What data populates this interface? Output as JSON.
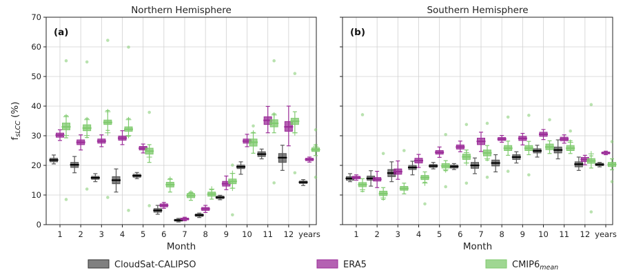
{
  "chart_data": [
    {
      "type": "box",
      "title": "Northern Hemisphere",
      "panel_label": "(a)",
      "xlabel": "Month",
      "ylabel": "f",
      "ylabel_sub": "sLCC",
      "ylabel_suffix": " (%)",
      "ylim": [
        0,
        70
      ],
      "yticks": [
        "0",
        "10",
        "20",
        "30",
        "40",
        "50",
        "60",
        "70"
      ],
      "categories": [
        "1",
        "2",
        "3",
        "4",
        "5",
        "6",
        "7",
        "8",
        "9",
        "10",
        "11",
        "12",
        "years"
      ],
      "grid": true,
      "series": [
        {
          "name": "CloudSat-CALIPSO",
          "color": "#555555",
          "median": [
            21.8,
            20.2,
            15.8,
            15.0,
            16.5,
            4.8,
            1.5,
            3.2,
            9.2,
            19.5,
            23.8,
            22.6,
            14.3
          ],
          "q1": [
            21.2,
            19.3,
            15.3,
            13.8,
            16.0,
            4.2,
            1.2,
            2.8,
            8.8,
            18.9,
            23.0,
            21.0,
            13.9
          ],
          "q3": [
            22.4,
            21.0,
            16.3,
            16.2,
            17.0,
            5.4,
            1.8,
            3.6,
            9.6,
            20.1,
            24.6,
            24.0,
            14.7
          ],
          "wlo": [
            20.5,
            17.5,
            14.5,
            11.0,
            15.5,
            3.5,
            0.9,
            2.4,
            8.4,
            17.0,
            22.2,
            18.3,
            13.2
          ],
          "whi": [
            23.5,
            23.0,
            17.2,
            18.8,
            17.6,
            6.5,
            2.1,
            3.9,
            9.9,
            21.2,
            25.5,
            26.8,
            15.2
          ]
        },
        {
          "name": "ERA5",
          "color": "#9b2c98",
          "median": [
            30.2,
            27.8,
            28.2,
            29.2,
            25.8,
            6.5,
            1.9,
            5.3,
            13.8,
            28.2,
            35.2,
            33.0,
            22.0
          ],
          "q1": [
            29.5,
            27.0,
            27.5,
            28.5,
            25.2,
            6.0,
            1.6,
            4.8,
            13.0,
            27.5,
            33.8,
            31.5,
            21.6
          ],
          "q3": [
            30.9,
            28.6,
            28.9,
            29.9,
            26.4,
            7.0,
            2.2,
            5.8,
            14.6,
            28.9,
            36.4,
            34.8,
            22.4
          ],
          "wlo": [
            28.4,
            25.2,
            26.3,
            27.0,
            24.2,
            5.5,
            1.3,
            4.1,
            11.8,
            26.3,
            31.0,
            26.6,
            21.1
          ],
          "whi": [
            32.0,
            30.3,
            30.3,
            31.7,
            27.2,
            7.5,
            2.5,
            6.5,
            16.4,
            30.5,
            39.9,
            40.0,
            22.8
          ]
        },
        {
          "name": "CMIP6_mean",
          "color": "#7fca6e",
          "median": [
            33.0,
            32.6,
            34.5,
            32.2,
            24.8,
            13.5,
            9.8,
            10.3,
            14.6,
            27.8,
            34.2,
            34.9,
            25.3
          ],
          "q1": [
            32.0,
            31.7,
            33.8,
            31.5,
            23.8,
            12.7,
            9.1,
            9.6,
            13.8,
            26.5,
            33.0,
            33.8,
            24.7
          ],
          "q3": [
            34.3,
            33.7,
            35.3,
            33.0,
            25.8,
            14.3,
            10.5,
            11.0,
            15.4,
            28.9,
            35.4,
            35.9,
            25.9
          ],
          "wlo": [
            29.3,
            29.4,
            31.8,
            29.8,
            21.0,
            11.0,
            8.2,
            8.6,
            12.3,
            24.1,
            31.0,
            31.0,
            23.3
          ],
          "whi": [
            36.8,
            35.8,
            38.5,
            35.8,
            27.0,
            15.5,
            11.0,
            11.8,
            17.3,
            31.1,
            37.4,
            38.1,
            26.9
          ],
          "plus": [
            [
              36.4,
              30.1
            ],
            [
              35.4,
              30.1
            ],
            [
              38.1,
              31.0
            ],
            [
              35.4,
              30.1
            ],
            [
              22.8
            ],
            [
              15.3
            ],
            [
              10.7
            ],
            [
              12.0
            ],
            [
              17.3,
              12.3
            ],
            [
              30.9
            ],
            [
              37.0
            ],
            [
              31.0
            ],
            [
              26.3
            ]
          ],
          "outliers": [
            [
              55.3,
              8.5
            ],
            [
              54.9,
              12.0
            ],
            [
              62.2,
              9.2
            ],
            [
              59.9,
              4.8
            ],
            [
              37.9,
              6.4
            ],
            [],
            [],
            [],
            [
              20.1,
              3.3
            ],
            [
              33.3
            ],
            [
              55.3,
              14.1
            ],
            [
              51.0,
              17.5
            ],
            [
              32.0,
              16.0
            ]
          ]
        }
      ]
    },
    {
      "type": "box",
      "title": "Southern Hemisphere",
      "panel_label": "(b)",
      "xlabel": "Month",
      "ylim": [
        0,
        70
      ],
      "categories": [
        "1",
        "2",
        "3",
        "4",
        "5",
        "6",
        "7",
        "8",
        "9",
        "10",
        "11",
        "12",
        "years"
      ],
      "grid": true,
      "series": [
        {
          "name": "CloudSat-CALIPSO",
          "color": "#555555",
          "median": [
            15.6,
            15.6,
            17.4,
            19.3,
            19.8,
            19.6,
            20.0,
            20.8,
            22.8,
            24.9,
            25.2,
            20.4,
            20.3
          ],
          "q1": [
            15.0,
            15.0,
            16.2,
            18.6,
            19.3,
            19.1,
            19.0,
            19.8,
            22.0,
            24.2,
            24.2,
            19.5,
            19.9
          ],
          "q3": [
            16.2,
            16.4,
            18.6,
            20.0,
            20.3,
            20.1,
            21.0,
            21.8,
            23.6,
            25.6,
            26.2,
            21.2,
            20.7
          ],
          "wlo": [
            14.5,
            13.0,
            14.5,
            16.8,
            18.8,
            18.6,
            17.2,
            17.8,
            20.8,
            22.8,
            22.2,
            18.3,
            19.5
          ],
          "whi": [
            17.2,
            18.2,
            21.2,
            21.4,
            21.0,
            20.6,
            22.5,
            23.6,
            24.6,
            26.8,
            28.6,
            22.8,
            21.0
          ]
        },
        {
          "name": "ERA5",
          "color": "#9b2c98",
          "median": [
            15.9,
            15.3,
            17.9,
            21.6,
            24.4,
            26.2,
            28.1,
            28.9,
            29.1,
            30.5,
            28.9,
            22.0,
            24.2
          ],
          "q1": [
            15.5,
            14.7,
            17.0,
            20.8,
            23.8,
            25.5,
            27.0,
            28.4,
            28.4,
            29.8,
            28.3,
            21.3,
            23.9
          ],
          "q3": [
            16.3,
            15.9,
            18.8,
            22.4,
            25.0,
            26.9,
            29.2,
            29.4,
            29.8,
            31.2,
            29.5,
            22.7,
            24.5
          ],
          "wlo": [
            15.0,
            12.5,
            15.3,
            19.3,
            22.7,
            24.6,
            24.7,
            27.8,
            26.9,
            28.7,
            27.5,
            20.2,
            23.6
          ],
          "whi": [
            16.8,
            18.0,
            21.5,
            23.7,
            26.2,
            28.2,
            31.2,
            30.1,
            30.8,
            32.1,
            30.3,
            23.4,
            24.8
          ]
        },
        {
          "name": "CMIP6_mean",
          "color": "#7fca6e",
          "median": [
            13.5,
            10.5,
            12.2,
            15.9,
            19.8,
            22.9,
            24.2,
            25.8,
            25.8,
            26.2,
            25.8,
            21.5,
            20.3
          ],
          "q1": [
            12.8,
            9.8,
            11.6,
            15.2,
            19.1,
            22.0,
            23.2,
            25.0,
            25.0,
            25.3,
            25.0,
            20.7,
            19.6
          ],
          "q3": [
            14.2,
            11.3,
            12.9,
            16.6,
            20.6,
            23.8,
            25.2,
            26.7,
            26.7,
            27.2,
            26.7,
            22.3,
            21.0
          ],
          "wlo": [
            11.2,
            8.5,
            10.4,
            14.3,
            18.2,
            20.8,
            21.8,
            23.4,
            23.6,
            24.0,
            24.0,
            19.1,
            18.5
          ],
          "whi": [
            15.5,
            12.5,
            14.0,
            17.8,
            21.6,
            25.2,
            26.7,
            28.2,
            28.1,
            28.3,
            28.3,
            23.2,
            22.2
          ],
          "plus": [
            [
              11.8
            ],
            [
              9.0
            ],
            [],
            [
              14.0
            ],
            [
              18.5
            ],
            [
              24.3,
              20.8
            ],
            [
              22.3
            ],
            [],
            [],
            [],
            [
              27.8
            ],
            [
              23.9
            ],
            []
          ],
          "outliers": [
            [
              37.1
            ],
            [
              24.0
            ],
            [
              25.0
            ],
            [
              7.0
            ],
            [
              30.4,
              12.8
            ],
            [
              33.8,
              14.0
            ],
            [
              34.2,
              16.0
            ],
            [
              36.3,
              18.0
            ],
            [
              36.9,
              16.8
            ],
            [
              35.4
            ],
            [
              31.6
            ],
            [
              40.5,
              4.3
            ],
            [
              28.0,
              14.5
            ]
          ]
        }
      ]
    }
  ],
  "legend": {
    "placement": "bottom",
    "entries": [
      {
        "label": "CloudSat-CALIPSO",
        "sub": "",
        "color": "#555555"
      },
      {
        "label": "ERA5",
        "sub": "",
        "color": "#9b2c98"
      },
      {
        "label": "CMIP6",
        "sub": "mean",
        "color": "#7fca6e"
      }
    ]
  }
}
